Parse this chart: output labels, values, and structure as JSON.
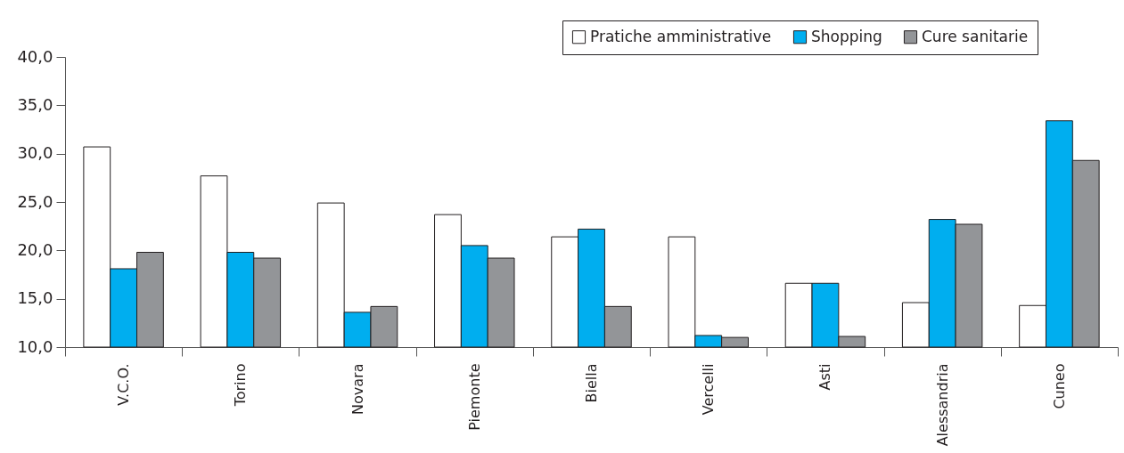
{
  "chart_data": {
    "type": "bar",
    "categories": [
      "V.C.O.",
      "Torino",
      "Novara",
      "Piemonte",
      "Biella",
      "Vercelli",
      "Asti",
      "Alessandria",
      "Cuneo"
    ],
    "series": [
      {
        "name": "Pratiche amministrative",
        "color": "#ffffff",
        "values": [
          30.7,
          27.7,
          24.9,
          23.7,
          21.4,
          21.4,
          16.6,
          14.6,
          14.3
        ]
      },
      {
        "name": "Shopping",
        "color": "#00aeef",
        "values": [
          18.1,
          19.8,
          13.6,
          20.5,
          22.2,
          11.2,
          16.6,
          23.2,
          33.4
        ]
      },
      {
        "name": "Cure sanitarie",
        "color": "#939598",
        "values": [
          19.8,
          19.2,
          14.2,
          19.2,
          14.2,
          11.0,
          11.1,
          22.7,
          29.3
        ]
      }
    ],
    "ylim": [
      10,
      40
    ],
    "yticks": [
      {
        "value": 10,
        "label": "10,0"
      },
      {
        "value": 15,
        "label": "15,0"
      },
      {
        "value": 20,
        "label": "20,0"
      },
      {
        "value": 25,
        "label": "25,0"
      },
      {
        "value": 30,
        "label": "30,0"
      },
      {
        "value": 35,
        "label": "35,0"
      },
      {
        "value": 40,
        "label": "40,0"
      }
    ],
    "grid": false,
    "legend": "top right"
  }
}
